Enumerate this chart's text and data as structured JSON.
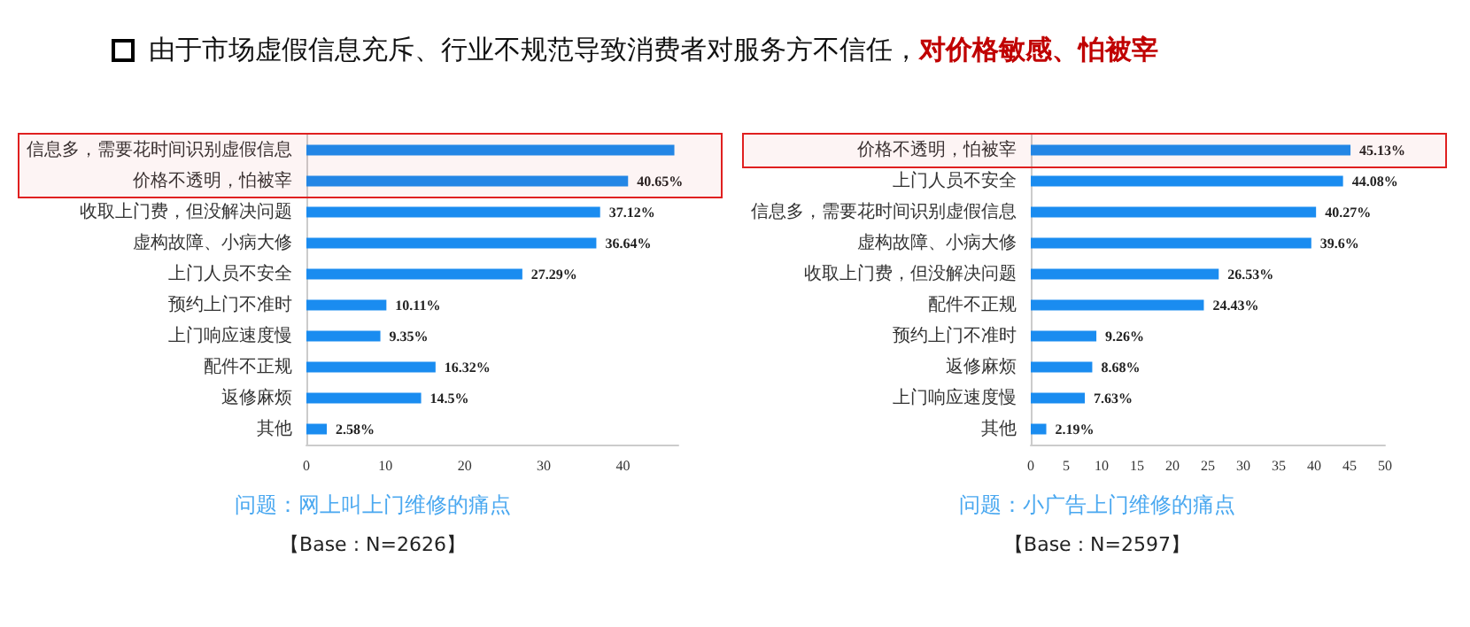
{
  "chart_data": [
    {
      "type": "other",
      "title": "由于市场虚假信息充斥、行业不规范导致消费者对服务方不信任，",
      "subtitle": "对价格敏感、怕被宰"
    },
    {
      "type": "bar",
      "orientation": "horizontal",
      "xlabel": "问题：网上叫上门维修的痛点",
      "annotations": [
        "【Base : N=2626】"
      ],
      "categories": [
        "信息多，需要花时间识别虚假信息",
        "价格不透明，怕被宰",
        "收取上门费，但没解决问题",
        "虚构故障、小病大修",
        "上门人员不安全",
        "预约上门不准时",
        "上门响应速度慢",
        "配件不正规",
        "返修麻烦",
        "其他"
      ],
      "values": [
        46.5,
        40.65,
        37.12,
        36.64,
        27.29,
        10.11,
        9.35,
        16.32,
        14.5,
        2.58
      ],
      "value_labels": [
        null,
        "40.65%",
        "37.12%",
        "36.64%",
        "27.29%",
        "10.11%",
        "9.35%",
        "16.32%",
        "14.5%",
        "2.58%"
      ],
      "color": "#1a8cf0",
      "xlim": [
        0,
        47
      ],
      "xticks": [
        0,
        10,
        20,
        30,
        40
      ],
      "bands": [
        {
          "axis": "y",
          "from": "信息多，需要花时间识别虚假信息",
          "to": "价格不透明，怕被宰",
          "color": "#e02020"
        }
      ]
    },
    {
      "type": "bar",
      "orientation": "horizontal",
      "xlabel": "问题：小广告上门维修的痛点",
      "annotations": [
        "【Base : N=2597】"
      ],
      "categories": [
        "价格不透明，怕被宰",
        "上门人员不安全",
        "信息多，需要花时间识别虚假信息",
        "虚构故障、小病大修",
        "收取上门费，但没解决问题",
        "配件不正规",
        "预约上门不准时",
        "返修麻烦",
        "上门响应速度慢",
        "其他"
      ],
      "values": [
        45.13,
        44.08,
        40.27,
        39.6,
        26.53,
        24.43,
        9.26,
        8.68,
        7.63,
        2.19
      ],
      "value_labels": [
        "45.13%",
        "44.08%",
        "40.27%",
        "39.6%",
        "26.53%",
        "24.43%",
        "9.26%",
        "8.68%",
        "7.63%",
        "2.19%"
      ],
      "color": "#1a8cf0",
      "xlim": [
        0,
        50
      ],
      "xticks": [
        0,
        5,
        10,
        15,
        20,
        25,
        30,
        35,
        40,
        45,
        50
      ],
      "bands": [
        {
          "axis": "y",
          "from": "价格不透明，怕被宰",
          "to": "价格不透明，怕被宰",
          "color": "#e02020"
        }
      ]
    }
  ]
}
